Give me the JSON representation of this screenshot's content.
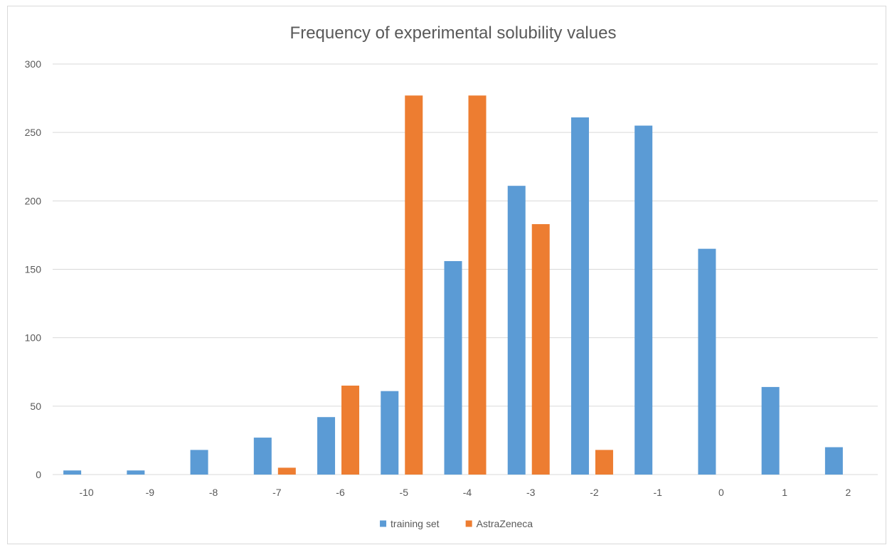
{
  "chart_data": {
    "type": "bar",
    "title": "Frequency of experimental solubility values",
    "xlabel": "",
    "ylabel": "",
    "categories": [
      "-10",
      "-9",
      "-8",
      "-7",
      "-6",
      "-5",
      "-4",
      "-3",
      "-2",
      "-1",
      "0",
      "1",
      "2"
    ],
    "series": [
      {
        "name": "training set",
        "color": "#5b9bd5",
        "values": [
          3,
          3,
          18,
          27,
          42,
          61,
          156,
          211,
          261,
          255,
          165,
          64,
          20
        ]
      },
      {
        "name": "AstraZeneca",
        "color": "#ed7d31",
        "values": [
          0,
          0,
          0,
          5,
          65,
          277,
          277,
          183,
          18,
          0,
          0,
          0,
          0
        ]
      }
    ],
    "ylim": [
      0,
      300
    ],
    "yticks": [
      "0",
      "50",
      "100",
      "150",
      "200",
      "250",
      "300"
    ],
    "grid": true,
    "legend_position": "bottom"
  }
}
